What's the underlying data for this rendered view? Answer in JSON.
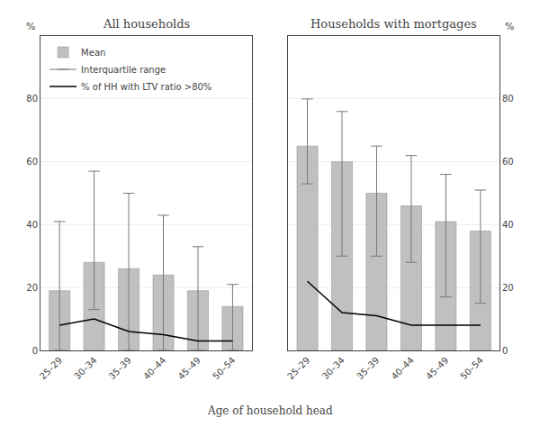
{
  "chart_data": [
    {
      "type": "bar",
      "title": "All households",
      "categories": [
        "25–29",
        "30–34",
        "35–39",
        "40–44",
        "45–49",
        "50–54"
      ],
      "series": [
        {
          "name": "Mean",
          "type": "bar",
          "color": "#c0c0c0",
          "values": [
            19,
            28,
            26,
            24,
            19,
            14
          ]
        },
        {
          "name": "Interquartile range",
          "type": "errorbar",
          "color": "#777777",
          "lower": [
            0,
            13,
            0,
            0,
            0,
            0
          ],
          "upper": [
            41,
            57,
            50,
            43,
            33,
            21
          ]
        },
        {
          "name": "% of HH with LTV ratio >80%",
          "type": "line",
          "color": "#000000",
          "values": [
            8,
            10,
            6,
            5,
            3,
            3
          ]
        }
      ],
      "xlabel": "Age of household head",
      "ylabel": "%",
      "ylim": [
        0,
        100
      ],
      "yticks": [
        0,
        20,
        40,
        60,
        80
      ],
      "grid": true,
      "legend": "upper left"
    },
    {
      "type": "bar",
      "title": "Households with mortgages",
      "categories": [
        "25–29",
        "30–34",
        "35–39",
        "40–44",
        "45–49",
        "50–54"
      ],
      "series": [
        {
          "name": "Mean",
          "type": "bar",
          "color": "#c0c0c0",
          "values": [
            65,
            60,
            50,
            46,
            41,
            38
          ]
        },
        {
          "name": "Interquartile range",
          "type": "errorbar",
          "color": "#777777",
          "lower": [
            53,
            30,
            30,
            28,
            17,
            15
          ],
          "upper": [
            80,
            76,
            65,
            62,
            56,
            51
          ]
        },
        {
          "name": "% of HH with LTV ratio >80%",
          "type": "line",
          "color": "#000000",
          "values": [
            22,
            12,
            11,
            8,
            8,
            8
          ]
        }
      ],
      "ylabel": "%",
      "ylim": [
        0,
        100
      ],
      "yticks": [
        0,
        20,
        40,
        60,
        80
      ],
      "grid": true
    }
  ]
}
